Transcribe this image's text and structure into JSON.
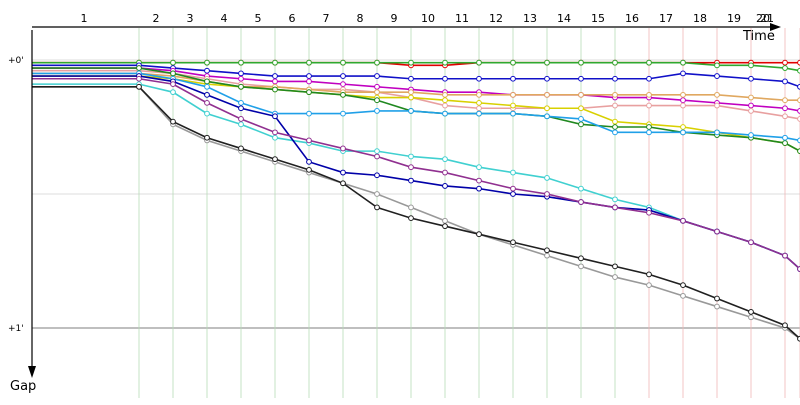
{
  "chart_data": {
    "type": "line",
    "title": "",
    "xlabel": "Time",
    "ylabel": "Gap",
    "lap_labels": [
      "1",
      "2",
      "3",
      "4",
      "5",
      "6",
      "7",
      "8",
      "9",
      "10",
      "11",
      "12",
      "13",
      "14",
      "15",
      "16",
      "17",
      "18",
      "19",
      "20",
      "21"
    ],
    "y_ticks": [
      "+0'",
      "+1'"
    ],
    "grid": true,
    "colors": {
      "grid_major": "#d0d0d0",
      "lap_line": "#b8dcb8",
      "lap_line_late": "#f0b8b8",
      "axis": "#000000"
    },
    "series": [
      {
        "color": "#e00000",
        "values": [
          0.01,
          0.01,
          0.01,
          0.01,
          0.01,
          0.01,
          0.01,
          0.01,
          0.02,
          0.02,
          0.01,
          0.01,
          0.01,
          0.01,
          0.01,
          0.01,
          0.01,
          0.01,
          0.01,
          0.01,
          0.01
        ]
      },
      {
        "color": "#2fa82f",
        "values": [
          0.01,
          0.01,
          0.01,
          0.01,
          0.01,
          0.01,
          0.01,
          0.01,
          0.01,
          0.01,
          0.01,
          0.01,
          0.01,
          0.01,
          0.01,
          0.01,
          0.01,
          0.02,
          0.02,
          0.03,
          0.04
        ]
      },
      {
        "color": "#1010c8",
        "values": [
          0.02,
          0.03,
          0.04,
          0.05,
          0.06,
          0.06,
          0.06,
          0.06,
          0.07,
          0.07,
          0.07,
          0.07,
          0.07,
          0.07,
          0.07,
          0.07,
          0.05,
          0.06,
          0.07,
          0.08,
          0.1
        ]
      },
      {
        "color": "#c000c0",
        "values": [
          0.03,
          0.04,
          0.06,
          0.07,
          0.08,
          0.08,
          0.09,
          0.1,
          0.11,
          0.12,
          0.12,
          0.13,
          0.13,
          0.13,
          0.14,
          0.14,
          0.15,
          0.16,
          0.17,
          0.18,
          0.19
        ]
      },
      {
        "color": "#e8a0a0",
        "values": [
          0.04,
          0.05,
          0.07,
          0.09,
          0.1,
          0.11,
          0.11,
          0.12,
          0.14,
          0.17,
          0.18,
          0.18,
          0.18,
          0.18,
          0.17,
          0.17,
          0.17,
          0.17,
          0.19,
          0.21,
          0.22
        ]
      },
      {
        "color": "#e0a860",
        "values": [
          0.05,
          0.06,
          0.08,
          0.1,
          0.1,
          0.11,
          0.12,
          0.12,
          0.12,
          0.13,
          0.13,
          0.13,
          0.13,
          0.13,
          0.13,
          0.13,
          0.13,
          0.13,
          0.14,
          0.15,
          0.15
        ]
      },
      {
        "color": "#d8d000",
        "values": [
          0.06,
          0.07,
          0.09,
          0.1,
          0.11,
          0.12,
          0.13,
          0.14,
          0.14,
          0.15,
          0.16,
          0.17,
          0.18,
          0.18,
          0.23,
          0.24,
          0.25,
          0.27,
          0.29,
          0.31,
          0.34
        ]
      },
      {
        "color": "#208820",
        "values": [
          0.03,
          0.05,
          0.08,
          0.1,
          0.11,
          0.12,
          0.13,
          0.15,
          0.19,
          0.2,
          0.2,
          0.2,
          0.21,
          0.24,
          0.25,
          0.25,
          0.27,
          0.28,
          0.29,
          0.31,
          0.34
        ]
      },
      {
        "color": "#20a0e8",
        "values": [
          0.05,
          0.07,
          0.1,
          0.16,
          0.2,
          0.2,
          0.2,
          0.19,
          0.19,
          0.2,
          0.2,
          0.2,
          0.21,
          0.22,
          0.27,
          0.27,
          0.27,
          0.27,
          0.28,
          0.29,
          0.3
        ]
      },
      {
        "color": "#40d0d0",
        "values": [
          0.09,
          0.12,
          0.2,
          0.24,
          0.29,
          0.31,
          0.34,
          0.34,
          0.36,
          0.37,
          0.4,
          0.42,
          0.44,
          0.48,
          0.52,
          0.55,
          0.6,
          0.64,
          0.68,
          0.73,
          0.78
        ]
      },
      {
        "color": "#0000a8",
        "values": [
          0.06,
          0.08,
          0.13,
          0.18,
          0.21,
          0.38,
          0.42,
          0.43,
          0.45,
          0.47,
          0.48,
          0.5,
          0.51,
          0.53,
          0.55,
          0.56,
          0.6,
          0.64,
          0.68,
          0.73,
          0.78
        ]
      },
      {
        "color": "#903090",
        "values": [
          0.07,
          0.09,
          0.16,
          0.22,
          0.27,
          0.3,
          0.33,
          0.36,
          0.4,
          0.42,
          0.45,
          0.48,
          0.5,
          0.53,
          0.55,
          0.57,
          0.6,
          0.64,
          0.68,
          0.73,
          0.78
        ]
      },
      {
        "color": "#999999",
        "values": [
          0.1,
          0.24,
          0.3,
          0.34,
          0.38,
          0.42,
          0.46,
          0.5,
          0.55,
          0.6,
          0.65,
          0.69,
          0.73,
          0.77,
          0.81,
          0.84,
          0.88,
          0.92,
          0.96,
          1.0,
          1.04
        ]
      },
      {
        "color": "#202020",
        "values": [
          0.1,
          0.23,
          0.29,
          0.33,
          0.37,
          0.41,
          0.46,
          0.55,
          0.59,
          0.62,
          0.65,
          0.68,
          0.71,
          0.74,
          0.77,
          0.8,
          0.84,
          0.89,
          0.94,
          0.99,
          1.04
        ]
      }
    ]
  }
}
